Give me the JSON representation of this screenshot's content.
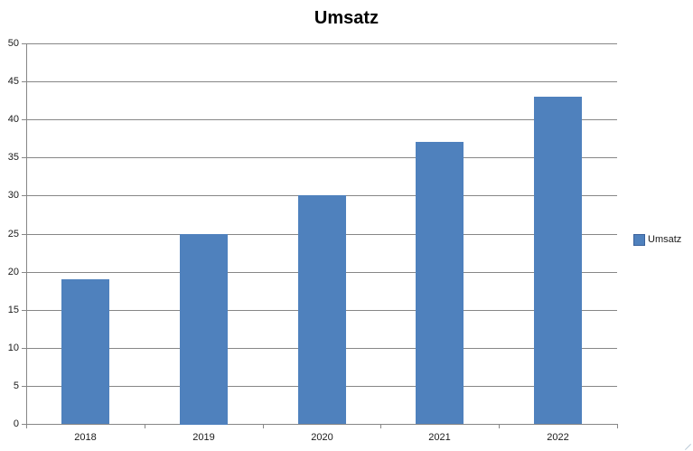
{
  "chart_data": {
    "type": "bar",
    "title": "Umsatz",
    "categories": [
      "2018",
      "2019",
      "2020",
      "2021",
      "2022"
    ],
    "values": [
      19,
      25,
      30,
      37,
      43
    ],
    "series_name": "Umsatz",
    "xlabel": "",
    "ylabel": "",
    "ylim": [
      0,
      50
    ],
    "ytick_step": 5,
    "grid": "horizontal",
    "legend_position": "right",
    "bar_color": "#4F81BD",
    "legend_swatch_border_color": "#3A619B",
    "gridline_color": "#878787",
    "axis_color": "#878787",
    "text_color": "#1a1a1a"
  },
  "legend": {
    "label": "Umsatz"
  }
}
